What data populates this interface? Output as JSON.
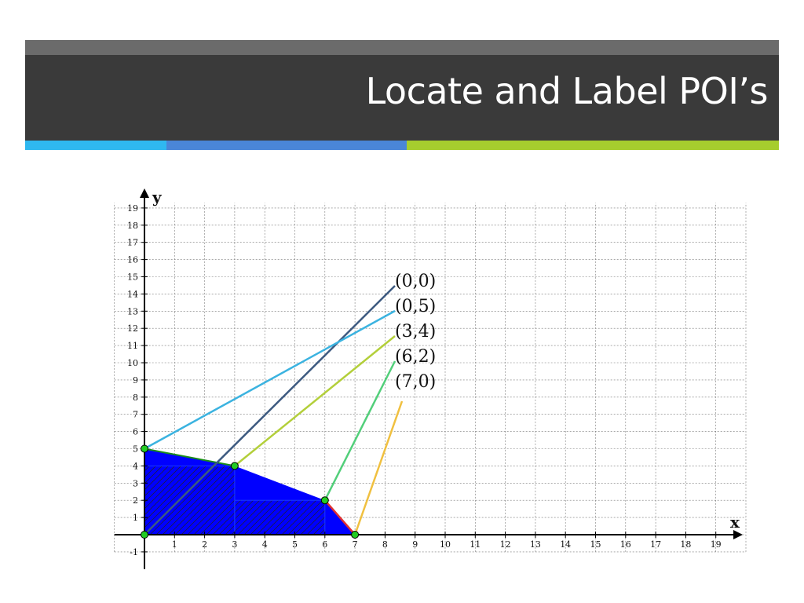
{
  "slide": {
    "title": "Locate and Label POI’s"
  },
  "colors": {
    "header_bg": "#3a3a3a",
    "header_top": "#6b6b6b",
    "accent": [
      "#2fb8f0",
      "#4a86d8",
      "#a6cd2e"
    ],
    "feasible_fill": "#0000ff",
    "point_fill": "#22cc22"
  },
  "chart_data": {
    "type": "scatter",
    "xlabel": "x",
    "ylabel": "y",
    "xlim": [
      -1,
      20
    ],
    "ylim": [
      -1,
      20
    ],
    "grid": true,
    "x_ticks": [
      1,
      2,
      3,
      4,
      5,
      6,
      7,
      8,
      9,
      10,
      11,
      12,
      13,
      14,
      15,
      16,
      17,
      18,
      19
    ],
    "y_ticks": [
      -1,
      1,
      2,
      3,
      4,
      5,
      6,
      7,
      8,
      9,
      10,
      11,
      12,
      13,
      14,
      15,
      16,
      17,
      18,
      19
    ],
    "feasible_region": [
      [
        0,
        0
      ],
      [
        0,
        5
      ],
      [
        3,
        4
      ],
      [
        6,
        2
      ],
      [
        7,
        0
      ]
    ],
    "points": [
      {
        "label": "(0,0)",
        "x": 0,
        "y": 0,
        "leader_color": "#3d5a80"
      },
      {
        "label": "(0,5)",
        "x": 0,
        "y": 5,
        "leader_color": "#3bb3e0"
      },
      {
        "label": "(3,4)",
        "x": 3,
        "y": 4,
        "leader_color": "#b3cf3a"
      },
      {
        "label": "(6,2)",
        "x": 6,
        "y": 2,
        "leader_color": "#52cf7a"
      },
      {
        "label": "(7,0)",
        "x": 7,
        "y": 0,
        "leader_color": "#f0c040"
      }
    ]
  }
}
